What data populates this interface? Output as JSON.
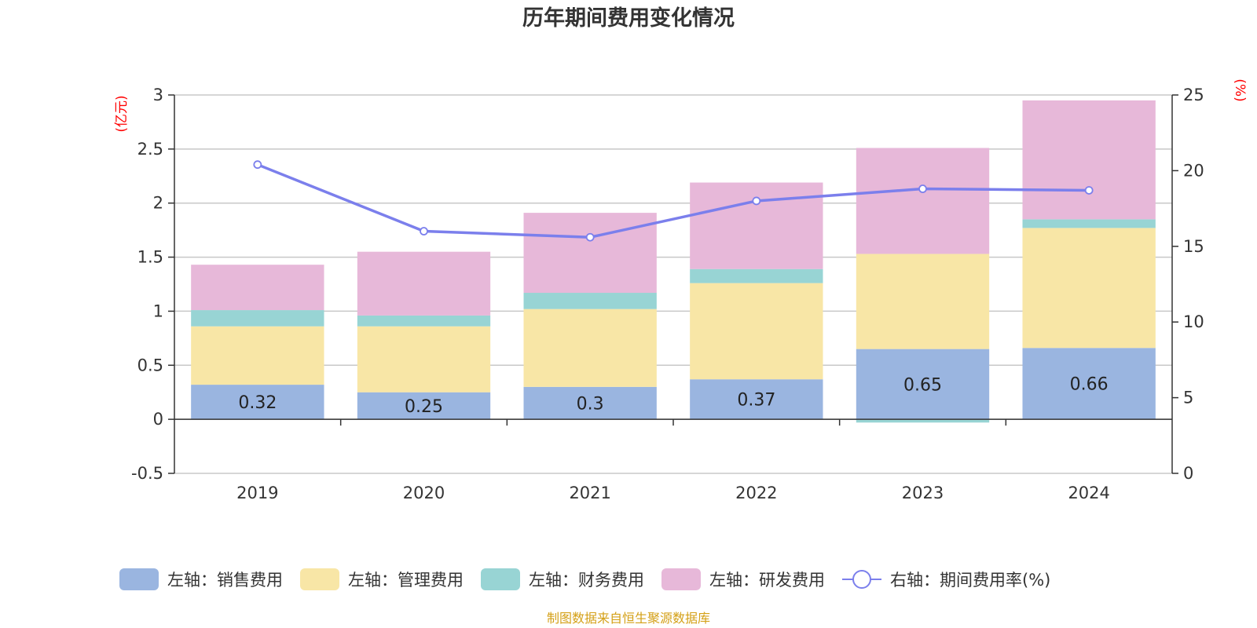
{
  "chart_data": {
    "type": "bar",
    "stacked": true,
    "title": "历年期间费用变化情况",
    "left_axis": {
      "unit": "(亿元)",
      "min": -0.5,
      "max": 3,
      "ticks": [
        -0.5,
        0,
        0.5,
        1,
        1.5,
        2,
        2.5,
        3
      ],
      "tick_labels": [
        "-0.5",
        "0",
        "0.5",
        "1",
        "1.5",
        "2",
        "2.5",
        "3"
      ]
    },
    "right_axis": {
      "unit": "(%)",
      "min": 0,
      "max": 25,
      "ticks": [
        0,
        5,
        10,
        15,
        20,
        25
      ],
      "tick_labels": [
        "0",
        "5",
        "10",
        "15",
        "20",
        "25"
      ]
    },
    "categories": [
      "2019",
      "2020",
      "2021",
      "2022",
      "2023",
      "2024"
    ],
    "series": [
      {
        "name": "左轴：销售费用",
        "axis": "left",
        "color": "#9ab5e0",
        "values": [
          0.32,
          0.25,
          0.3,
          0.37,
          0.65,
          0.66
        ],
        "labels": [
          "0.32",
          "0.25",
          "0.3",
          "0.37",
          "0.65",
          "0.66"
        ]
      },
      {
        "name": "左轴：管理费用",
        "axis": "left",
        "color": "#f8e6a6",
        "values": [
          0.54,
          0.61,
          0.72,
          0.89,
          0.88,
          1.11
        ]
      },
      {
        "name": "左轴：财务费用",
        "axis": "left",
        "color": "#98d4d4",
        "values": [
          0.15,
          0.1,
          0.15,
          0.13,
          -0.03,
          0.08
        ]
      },
      {
        "name": "左轴：研发费用",
        "axis": "left",
        "color": "#e7b8d9",
        "values": [
          0.42,
          0.59,
          0.74,
          0.8,
          0.98,
          1.1
        ]
      },
      {
        "name": "右轴：期间费用率(%)",
        "axis": "right",
        "type": "line",
        "color": "#7b7fec",
        "values": [
          20.4,
          16.0,
          15.6,
          18.0,
          18.8,
          18.7
        ]
      }
    ],
    "source": "制图数据来自恒生聚源数据库"
  }
}
